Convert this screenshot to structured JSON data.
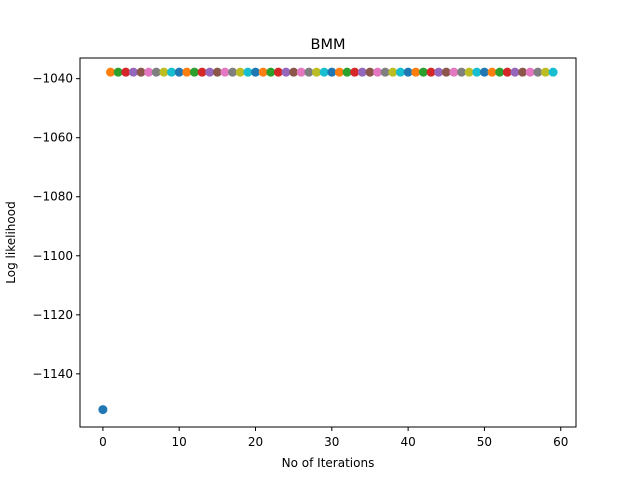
{
  "chart_data": {
    "type": "scatter",
    "title": "BMM",
    "xlabel": "No of Iterations",
    "ylabel": "Log likelihood",
    "xlim": [
      -3,
      62
    ],
    "ylim": [
      -1158,
      -1033
    ],
    "xticks": [
      0,
      10,
      20,
      30,
      40,
      50,
      60
    ],
    "xtick_labels": [
      "0",
      "10",
      "20",
      "30",
      "40",
      "50",
      "60"
    ],
    "yticks": [
      -1040,
      -1060,
      -1080,
      -1100,
      -1120,
      -1140
    ],
    "ytick_labels": [
      "−1040",
      "−1060",
      "−1080",
      "−1100",
      "−1120",
      "−1140"
    ],
    "grid": false,
    "color_cycle": [
      "#1f77b4",
      "#ff7f0e",
      "#2ca02c",
      "#d62728",
      "#9467bd",
      "#8c564b",
      "#e377c2",
      "#7f7f7f",
      "#bcbd22",
      "#17becf"
    ],
    "points": [
      {
        "x": 0,
        "y": -1152.1
      },
      {
        "x": 1,
        "y": -1037.8
      },
      {
        "x": 2,
        "y": -1037.8
      },
      {
        "x": 3,
        "y": -1037.8
      },
      {
        "x": 4,
        "y": -1037.8
      },
      {
        "x": 5,
        "y": -1037.8
      },
      {
        "x": 6,
        "y": -1037.8
      },
      {
        "x": 7,
        "y": -1037.8
      },
      {
        "x": 8,
        "y": -1037.8
      },
      {
        "x": 9,
        "y": -1037.8
      },
      {
        "x": 10,
        "y": -1037.8
      },
      {
        "x": 11,
        "y": -1037.8
      },
      {
        "x": 12,
        "y": -1037.8
      },
      {
        "x": 13,
        "y": -1037.8
      },
      {
        "x": 14,
        "y": -1037.8
      },
      {
        "x": 15,
        "y": -1037.8
      },
      {
        "x": 16,
        "y": -1037.8
      },
      {
        "x": 17,
        "y": -1037.8
      },
      {
        "x": 18,
        "y": -1037.8
      },
      {
        "x": 19,
        "y": -1037.8
      },
      {
        "x": 20,
        "y": -1037.8
      },
      {
        "x": 21,
        "y": -1037.8
      },
      {
        "x": 22,
        "y": -1037.8
      },
      {
        "x": 23,
        "y": -1037.8
      },
      {
        "x": 24,
        "y": -1037.8
      },
      {
        "x": 25,
        "y": -1037.8
      },
      {
        "x": 26,
        "y": -1037.8
      },
      {
        "x": 27,
        "y": -1037.8
      },
      {
        "x": 28,
        "y": -1037.8
      },
      {
        "x": 29,
        "y": -1037.8
      },
      {
        "x": 30,
        "y": -1037.8
      },
      {
        "x": 31,
        "y": -1037.8
      },
      {
        "x": 32,
        "y": -1037.8
      },
      {
        "x": 33,
        "y": -1037.8
      },
      {
        "x": 34,
        "y": -1037.8
      },
      {
        "x": 35,
        "y": -1037.8
      },
      {
        "x": 36,
        "y": -1037.8
      },
      {
        "x": 37,
        "y": -1037.8
      },
      {
        "x": 38,
        "y": -1037.8
      },
      {
        "x": 39,
        "y": -1037.8
      },
      {
        "x": 40,
        "y": -1037.8
      },
      {
        "x": 41,
        "y": -1037.8
      },
      {
        "x": 42,
        "y": -1037.8
      },
      {
        "x": 43,
        "y": -1037.8
      },
      {
        "x": 44,
        "y": -1037.8
      },
      {
        "x": 45,
        "y": -1037.8
      },
      {
        "x": 46,
        "y": -1037.8
      },
      {
        "x": 47,
        "y": -1037.8
      },
      {
        "x": 48,
        "y": -1037.8
      },
      {
        "x": 49,
        "y": -1037.8
      },
      {
        "x": 50,
        "y": -1037.8
      },
      {
        "x": 51,
        "y": -1037.8
      },
      {
        "x": 52,
        "y": -1037.8
      },
      {
        "x": 53,
        "y": -1037.8
      },
      {
        "x": 54,
        "y": -1037.8
      },
      {
        "x": 55,
        "y": -1037.8
      },
      {
        "x": 56,
        "y": -1037.8
      },
      {
        "x": 57,
        "y": -1037.8
      },
      {
        "x": 58,
        "y": -1037.8
      },
      {
        "x": 59,
        "y": -1037.8
      }
    ]
  }
}
